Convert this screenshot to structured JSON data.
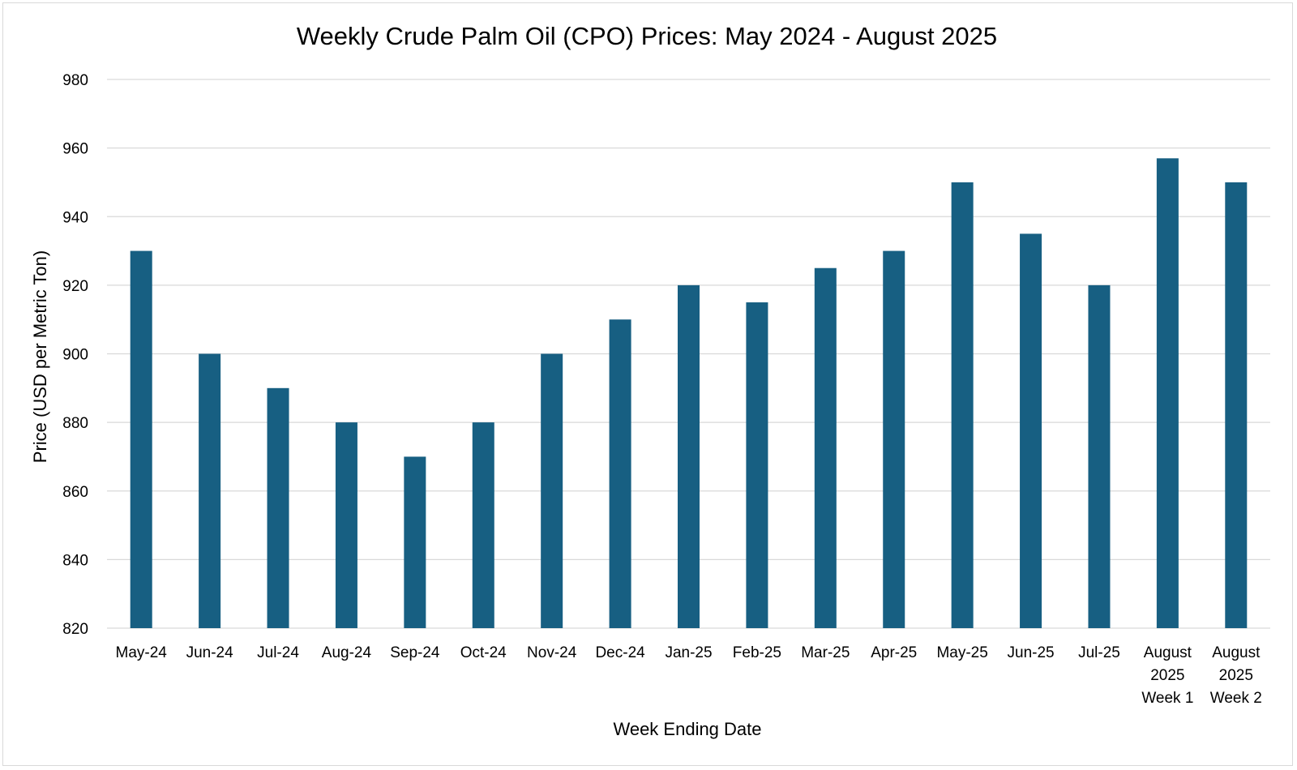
{
  "chart_data": {
    "type": "bar",
    "title": "Weekly Crude Palm Oil (CPO) Prices: May 2024 - August 2025",
    "xlabel": "Week Ending Date",
    "ylabel": "Price (USD per Metric Ton)",
    "ylim": [
      820,
      980
    ],
    "yticks": [
      820,
      840,
      860,
      880,
      900,
      920,
      940,
      960,
      980
    ],
    "grid": true,
    "legend": "none",
    "bar_color": "#175f82",
    "categories": [
      [
        "May-24"
      ],
      [
        "Jun-24"
      ],
      [
        "Jul-24"
      ],
      [
        "Aug-24"
      ],
      [
        "Sep-24"
      ],
      [
        "Oct-24"
      ],
      [
        "Nov-24"
      ],
      [
        "Dec-24"
      ],
      [
        "Jan-25"
      ],
      [
        "Feb-25"
      ],
      [
        "Mar-25"
      ],
      [
        "Apr-25"
      ],
      [
        "May-25"
      ],
      [
        "Jun-25"
      ],
      [
        "Jul-25"
      ],
      [
        "August",
        "2025",
        "Week 1"
      ],
      [
        "August",
        "2025",
        "Week 2"
      ]
    ],
    "values": [
      930,
      900,
      890,
      880,
      870,
      880,
      900,
      910,
      920,
      915,
      925,
      930,
      950,
      935,
      920,
      957,
      950
    ]
  }
}
